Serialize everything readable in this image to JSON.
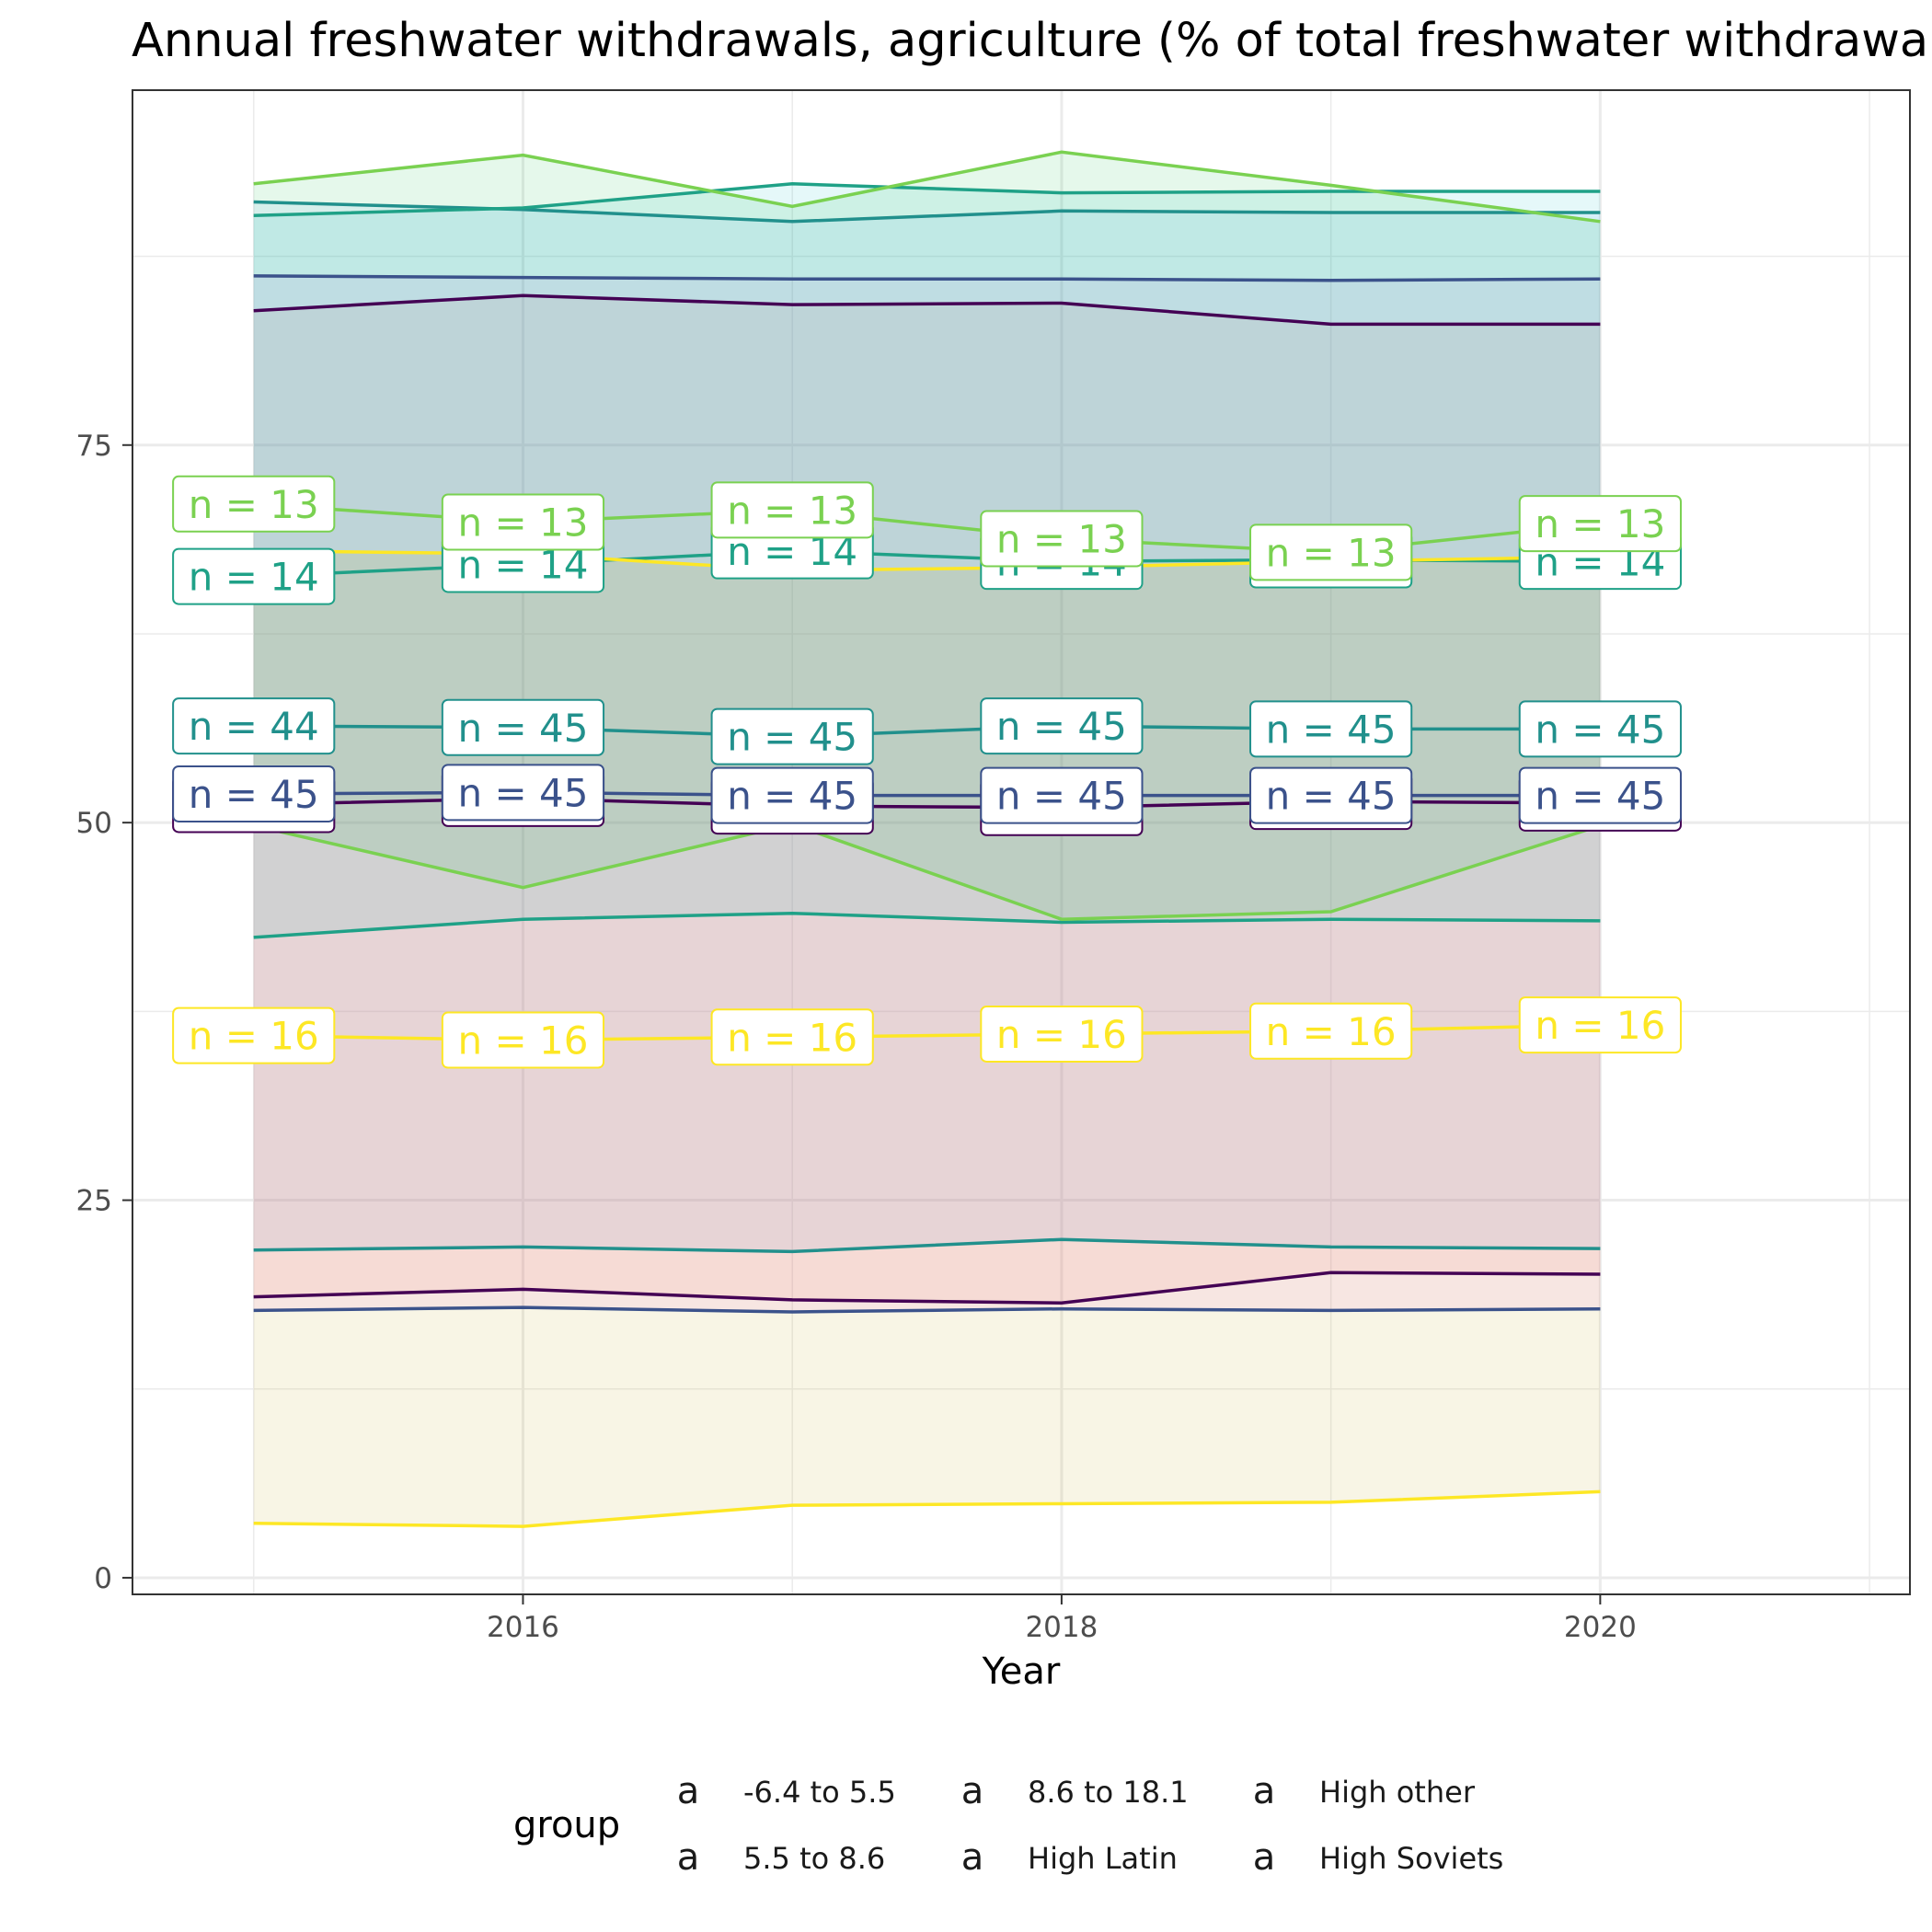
{
  "chart_data": {
    "type": "line",
    "title": "Annual freshwater withdrawals, agriculture (% of total freshwater withdrawal)",
    "xlabel": "Year",
    "ylabel": "",
    "xlim": [
      2014.55,
      2021.15
    ],
    "ylim": [
      -1.1,
      98.5
    ],
    "x_ticks": [
      2016,
      2018,
      2020
    ],
    "y_ticks": [
      0,
      25,
      50,
      75
    ],
    "x": [
      2015,
      2016,
      2017,
      2018,
      2019,
      2020
    ],
    "grid": true,
    "legend": {
      "title": "group",
      "position": "bottom",
      "key_glyph": "a"
    },
    "series": [
      {
        "name": "-6.4 to 5.5",
        "color": "#440154",
        "fill": "#F8766D",
        "mean": [
          51.2,
          51.6,
          51.1,
          51.0,
          51.4,
          51.3
        ],
        "lower": [
          18.6,
          19.1,
          18.4,
          18.2,
          20.2,
          20.1
        ],
        "upper": [
          83.9,
          84.9,
          84.3,
          84.4,
          83.0,
          83.0
        ],
        "n": [
          "n = 45",
          "n = 45",
          "n = 45",
          "n = 45",
          "n = 45",
          "n = 45"
        ]
      },
      {
        "name": "5.5 to 8.6",
        "color": "#3B528B",
        "fill": "#F564E3",
        "mean": [
          51.9,
          52.0,
          51.8,
          51.8,
          51.8,
          51.8
        ],
        "lower": [
          17.7,
          17.9,
          17.6,
          17.8,
          17.7,
          17.8
        ],
        "upper": [
          86.2,
          86.1,
          86.0,
          86.0,
          85.9,
          86.0
        ],
        "n": [
          "n = 45",
          "n = 45",
          "n = 45",
          "n = 45",
          "n = 45",
          "n = 45"
        ]
      },
      {
        "name": "8.6 to 18.1",
        "color": "#21908C",
        "fill": "#619CFF",
        "mean": [
          56.4,
          56.3,
          55.7,
          56.4,
          56.2,
          56.2
        ],
        "lower": [
          21.7,
          21.9,
          21.6,
          22.4,
          21.9,
          21.8
        ],
        "upper": [
          91.1,
          90.6,
          89.8,
          90.5,
          90.4,
          90.4
        ],
        "n": [
          "n = 44",
          "n = 45",
          "n = 45",
          "n = 45",
          "n = 45",
          "n = 45"
        ]
      },
      {
        "name": "High Latin",
        "color": "#1FA187",
        "fill": "#00BFC4",
        "mean": [
          66.3,
          67.1,
          68.0,
          67.3,
          67.4,
          67.3
        ],
        "lower": [
          42.4,
          43.6,
          44.0,
          43.4,
          43.6,
          43.5
        ],
        "upper": [
          90.2,
          90.7,
          92.3,
          91.7,
          91.8,
          91.8
        ],
        "n": [
          "n = 14",
          "n = 14",
          "n = 14",
          "n = 14",
          "n = 14",
          "n = 14"
        ]
      },
      {
        "name": "High other",
        "color": "#7AD151",
        "fill": "#00BA38",
        "mean": [
          71.1,
          69.9,
          70.7,
          68.8,
          67.9,
          69.8
        ],
        "lower": [
          49.8,
          45.7,
          49.9,
          43.6,
          44.1,
          49.8
        ],
        "upper": [
          92.3,
          94.2,
          90.8,
          94.4,
          92.2,
          89.8
        ],
        "n": [
          "n = 13",
          "n = 13",
          "n = 13",
          "n = 13",
          "n = 13",
          "n = 13"
        ]
      },
      {
        "name": "High Soviets",
        "color": "#FDE725",
        "fill": "#B79F00",
        "mean": [
          35.9,
          35.6,
          35.8,
          36.0,
          36.2,
          36.6
        ],
        "lower": [
          3.6,
          3.4,
          4.8,
          4.9,
          5.0,
          5.7
        ],
        "upper": [
          68.0,
          67.8,
          66.7,
          66.9,
          67.3,
          67.6
        ],
        "n": [
          "n = 16",
          "n = 16",
          "n = 16",
          "n = 16",
          "n = 16",
          "n = 16"
        ]
      }
    ]
  }
}
